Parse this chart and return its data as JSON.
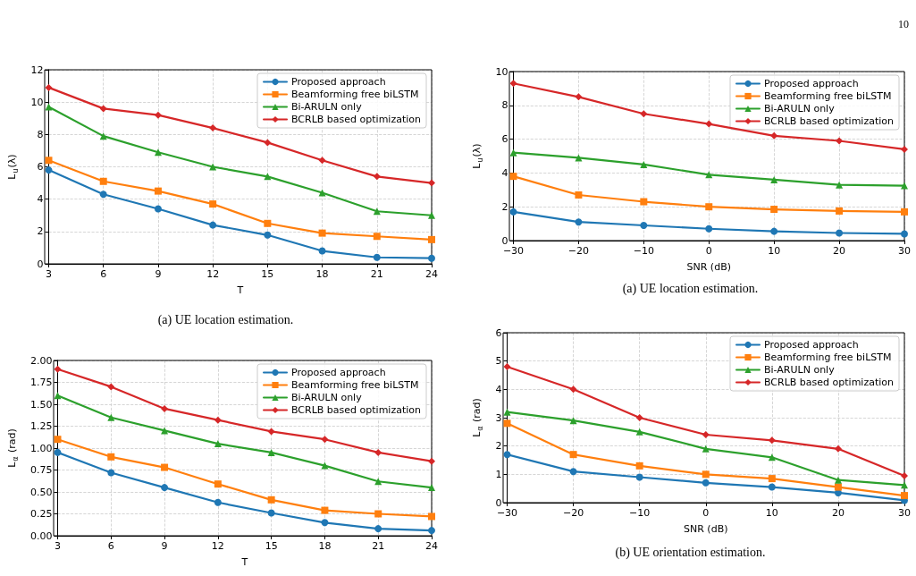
{
  "chart_data": [
    {
      "type": "line",
      "xlabel": "T",
      "ylabel": "L$_{u}$(λ)",
      "x": [
        3,
        6,
        9,
        12,
        15,
        18,
        21,
        24
      ],
      "xlim": [
        3,
        24
      ],
      "xticks": [
        3,
        6,
        9,
        12,
        15,
        18,
        21,
        24
      ],
      "ylim": [
        0,
        12
      ],
      "yticks": [
        0,
        2,
        4,
        6,
        8,
        10,
        12
      ],
      "grid": true,
      "legend": "top right",
      "line_style": "solid",
      "annotations": [
        "(a) UE location estimation."
      ],
      "series": [
        {
          "name": "Proposed approach",
          "color": "#1f77b4",
          "marker": "circle",
          "values": [
            5.8,
            4.3,
            3.4,
            2.4,
            1.78,
            0.8,
            0.4,
            0.35
          ]
        },
        {
          "name": "Beamforming free biLSTM",
          "color": "#ff7f0e",
          "marker": "square",
          "values": [
            6.4,
            5.1,
            4.5,
            3.7,
            2.5,
            1.9,
            1.7,
            1.5
          ]
        },
        {
          "name": "Bi-ARULN only",
          "color": "#2ca02c",
          "marker": "triangle",
          "values": [
            9.7,
            7.9,
            6.9,
            6.0,
            5.4,
            4.4,
            3.25,
            3.0
          ]
        },
        {
          "name": "BCRLB based optimization",
          "color": "#d62728",
          "marker": "diamond",
          "values": [
            10.9,
            9.6,
            9.2,
            8.4,
            7.5,
            6.4,
            5.4,
            5.0
          ]
        }
      ]
    },
    {
      "type": "line",
      "xlabel": "SNR (dB)",
      "ylabel": "L$_{u}$(λ)",
      "x": [
        -30,
        -20,
        -10,
        0,
        10,
        20,
        30
      ],
      "xlim": [
        -30,
        30
      ],
      "xticks": [
        {
          "value": -30,
          "label": "−30"
        },
        {
          "value": -20,
          "label": "−20"
        },
        {
          "value": -10,
          "label": "−10"
        },
        0,
        10,
        20,
        30
      ],
      "ylim": [
        0,
        10
      ],
      "yticks": [
        0,
        2,
        4,
        6,
        8,
        10
      ],
      "grid": true,
      "legend": "top right",
      "line_style": "solid",
      "annotations": [
        "10",
        "(a) UE location estimation."
      ],
      "series": [
        {
          "name": "Proposed approach",
          "color": "#1f77b4",
          "marker": "circle",
          "values": [
            1.7,
            1.1,
            0.9,
            0.7,
            0.55,
            0.45,
            0.4
          ]
        },
        {
          "name": "Beamforming free biLSTM",
          "color": "#ff7f0e",
          "marker": "square",
          "values": [
            3.8,
            2.7,
            2.3,
            2.0,
            1.85,
            1.75,
            1.7
          ]
        },
        {
          "name": "Bi-ARULN only",
          "color": "#2ca02c",
          "marker": "triangle",
          "values": [
            5.2,
            4.9,
            4.5,
            3.9,
            3.6,
            3.3,
            3.25
          ]
        },
        {
          "name": "BCRLB based optimization",
          "color": "#d62728",
          "marker": "diamond",
          "values": [
            9.3,
            8.5,
            7.5,
            6.9,
            6.2,
            5.9,
            5.4
          ]
        }
      ]
    },
    {
      "type": "line",
      "xlabel": "T",
      "ylabel": "L$_{α}$ (rad)",
      "x": [
        3,
        6,
        9,
        12,
        15,
        18,
        21,
        24
      ],
      "xlim": [
        3,
        24
      ],
      "xticks": [
        3,
        6,
        9,
        12,
        15,
        18,
        21,
        24
      ],
      "ylim": [
        0,
        2
      ],
      "yticks": [
        {
          "value": 0,
          "label": "0.00"
        },
        {
          "value": 0.25,
          "label": "0.25"
        },
        {
          "value": 0.5,
          "label": "0.50"
        },
        {
          "value": 0.75,
          "label": "0.75"
        },
        {
          "value": 1,
          "label": "1.00"
        },
        {
          "value": 1.25,
          "label": "1.25"
        },
        {
          "value": 1.5,
          "label": "1.50"
        },
        {
          "value": 1.75,
          "label": "1.75"
        },
        {
          "value": 2,
          "label": "2.00"
        }
      ],
      "grid": true,
      "legend": "top right",
      "line_style": "solid",
      "series": [
        {
          "name": "Proposed approach",
          "color": "#1f77b4",
          "marker": "circle",
          "values": [
            0.95,
            0.72,
            0.55,
            0.38,
            0.26,
            0.15,
            0.08,
            0.06
          ]
        },
        {
          "name": "Beamforming free biLSTM",
          "color": "#ff7f0e",
          "marker": "square",
          "values": [
            1.1,
            0.9,
            0.78,
            0.59,
            0.41,
            0.29,
            0.25,
            0.22
          ]
        },
        {
          "name": "Bi-ARULN only",
          "color": "#2ca02c",
          "marker": "triangle",
          "values": [
            1.6,
            1.35,
            1.2,
            1.05,
            0.95,
            0.8,
            0.62,
            0.55
          ]
        },
        {
          "name": "BCRLB based optimization",
          "color": "#d62728",
          "marker": "diamond",
          "values": [
            1.9,
            1.7,
            1.45,
            1.32,
            1.19,
            1.1,
            0.95,
            0.85
          ]
        }
      ]
    },
    {
      "type": "line",
      "xlabel": "SNR (dB)",
      "ylabel": "L$_{α}$ (rad)",
      "x": [
        -30,
        -20,
        -10,
        0,
        10,
        20,
        30
      ],
      "xlim": [
        -30,
        30
      ],
      "xticks": [
        {
          "value": -30,
          "label": "−30"
        },
        {
          "value": -20,
          "label": "−20"
        },
        {
          "value": -10,
          "label": "−10"
        },
        0,
        10,
        20,
        30
      ],
      "ylim": [
        0,
        6
      ],
      "yticks": [
        0,
        1,
        2,
        3,
        4,
        5,
        6
      ],
      "grid": true,
      "legend": "top right",
      "line_style": "solid",
      "annotations": [
        "(b) UE orientation estimation."
      ],
      "series": [
        {
          "name": "Proposed approach",
          "color": "#1f77b4",
          "marker": "circle",
          "values": [
            1.7,
            1.1,
            0.9,
            0.7,
            0.55,
            0.35,
            0.08
          ]
        },
        {
          "name": "Beamforming free biLSTM",
          "color": "#ff7f0e",
          "marker": "square",
          "values": [
            2.8,
            1.7,
            1.3,
            1.0,
            0.85,
            0.55,
            0.25
          ]
        },
        {
          "name": "Bi-ARULN only",
          "color": "#2ca02c",
          "marker": "triangle",
          "values": [
            3.2,
            2.9,
            2.5,
            1.9,
            1.6,
            0.8,
            0.62
          ]
        },
        {
          "name": "BCRLB based optimization",
          "color": "#d62728",
          "marker": "diamond",
          "values": [
            4.8,
            4.0,
            3.0,
            2.4,
            2.2,
            1.9,
            0.95
          ]
        }
      ]
    }
  ]
}
